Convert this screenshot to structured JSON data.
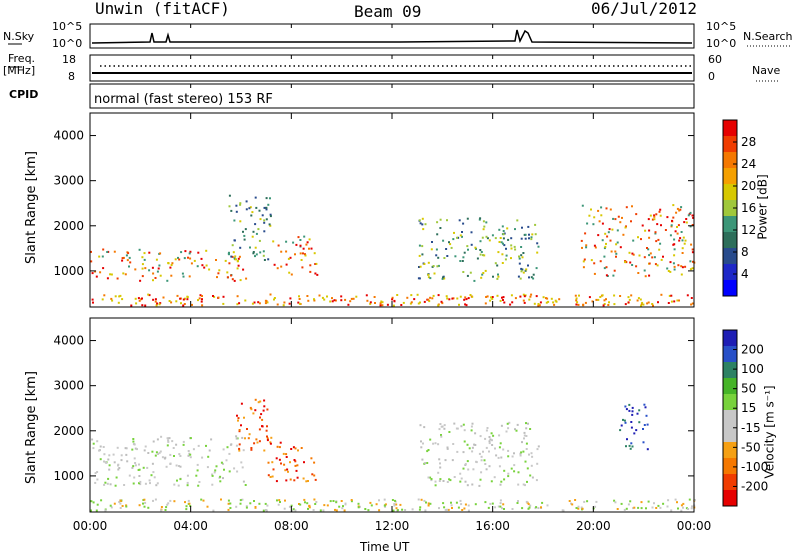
{
  "header": {
    "station": "Unwin (fitACF)",
    "beam": "Beam 09",
    "date": "06/Jul/2012"
  },
  "sidepanel": {
    "nsky": "N.Sky",
    "nsearch": "N.Search",
    "freq": "Freq.",
    "freq_unit": "[MHz]",
    "nave": "Nave",
    "cpid": "CPID",
    "cpid_value": "normal (fast stereo) 153 RF",
    "noise_ticks": [
      "10^5",
      "10^0"
    ],
    "freq_ticks": [
      "18",
      "8"
    ],
    "nave_ticks": [
      "60",
      "0"
    ],
    "search_ticks": [
      "10^5",
      "10^0"
    ]
  },
  "chart_data": [
    {
      "type": "heatmap",
      "panel": "power",
      "ylabel": "Slant Range [km]",
      "xlabel": "Time UT",
      "xlim": [
        0,
        24
      ],
      "ylim": [
        200,
        4500
      ],
      "yticks": [
        "4000",
        "3000",
        "2000",
        "1000"
      ],
      "xticks": [
        "00:00",
        "04:00",
        "08:00",
        "12:00",
        "16:00",
        "20:00",
        "00:00"
      ],
      "colorbar": {
        "label": "Power [dB]",
        "ticks": [
          "28",
          "24",
          "20",
          "16",
          "12",
          "8",
          "4"
        ],
        "colors": [
          "#e60000",
          "#f03c00",
          "#f57800",
          "#f5a000",
          "#d7c800",
          "#a0c83c",
          "#3c9678",
          "#2d6e5a",
          "#284b8c",
          "#1e28c8",
          "#0000ff"
        ]
      },
      "features": [
        {
          "t0": 0.0,
          "t1": 6.2,
          "r0": 800,
          "r1": 1500,
          "level": "high"
        },
        {
          "t0": 5.5,
          "t1": 7.2,
          "r0": 1200,
          "r1": 2700,
          "level": "mid"
        },
        {
          "t0": 7.2,
          "t1": 9.0,
          "r0": 900,
          "r1": 1800,
          "level": "high"
        },
        {
          "t0": 13.0,
          "t1": 17.8,
          "r0": 800,
          "r1": 2200,
          "level": "mid"
        },
        {
          "t0": 19.5,
          "t1": 24.0,
          "r0": 900,
          "r1": 2500,
          "level": "high"
        }
      ]
    },
    {
      "type": "heatmap",
      "panel": "velocity",
      "ylabel": "Slant Range [km]",
      "xlabel": "Time UT",
      "xlim": [
        0,
        24
      ],
      "ylim": [
        200,
        4500
      ],
      "yticks": [
        "4000",
        "3000",
        "2000",
        "1000"
      ],
      "xticks": [
        "00:00",
        "04:00",
        "08:00",
        "12:00",
        "16:00",
        "20:00",
        "00:00"
      ],
      "colorbar": {
        "label": "Velocity [m s⁻¹]",
        "ticks": [
          "200",
          "100",
          "50",
          "15",
          "-15",
          "-50",
          "-100",
          "-200"
        ],
        "colors": [
          "#1e1eb4",
          "#2850c8",
          "#2d8264",
          "#46b428",
          "#78d23c",
          "#c8c8c8",
          "#c8c8c8",
          "#f5a014",
          "#f57800",
          "#f03c00",
          "#e60000"
        ]
      },
      "features": [
        {
          "t0": 0.0,
          "t1": 6.2,
          "r0": 800,
          "r1": 1900,
          "level": "gray"
        },
        {
          "t0": 5.8,
          "t1": 7.2,
          "r0": 1500,
          "r1": 2800,
          "level": "red"
        },
        {
          "t0": 7.0,
          "t1": 9.0,
          "r0": 900,
          "r1": 1800,
          "level": "red"
        },
        {
          "t0": 13.0,
          "t1": 17.8,
          "r0": 800,
          "r1": 2200,
          "level": "gray"
        },
        {
          "t0": 21.0,
          "t1": 22.2,
          "r0": 1500,
          "r1": 2600,
          "level": "blue"
        }
      ]
    }
  ]
}
